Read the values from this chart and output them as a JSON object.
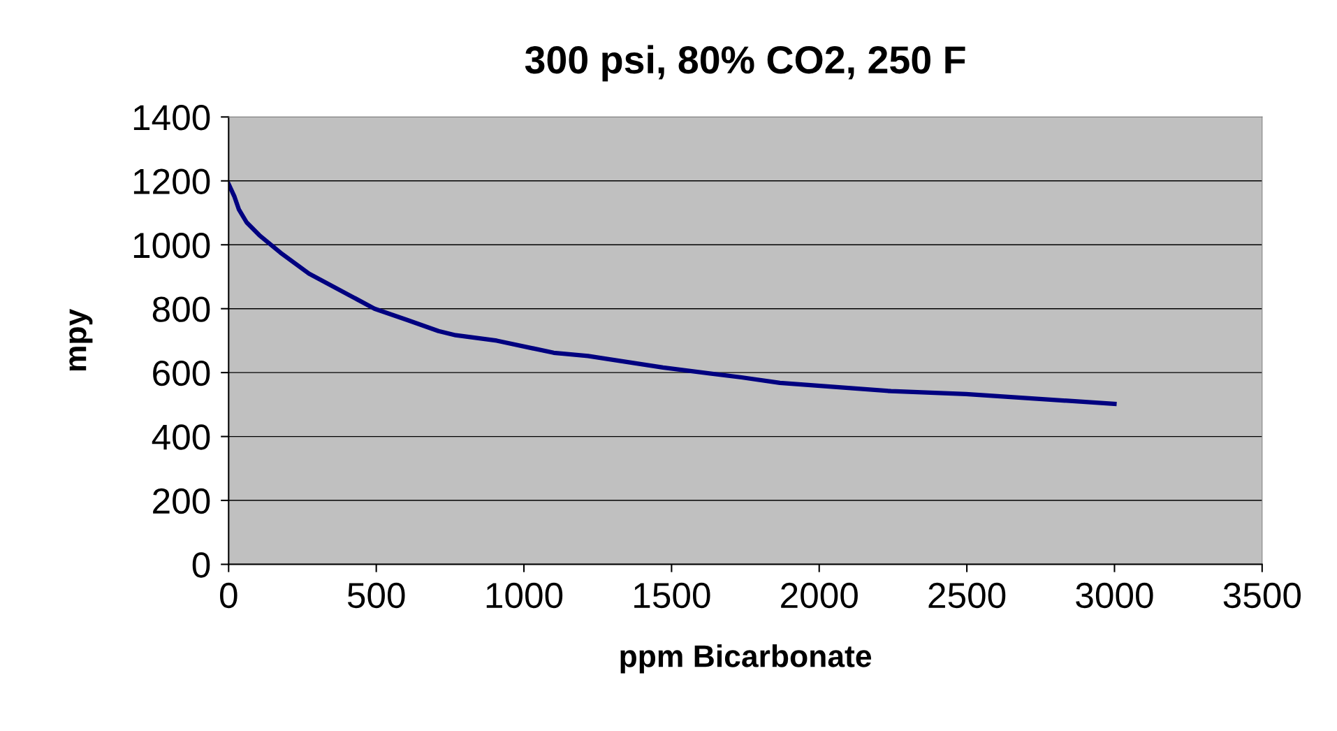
{
  "chart_data": {
    "type": "line",
    "title": "300 psi, 80% CO2, 250 F",
    "xlabel": "ppm Bicarbonate",
    "ylabel": "mpy",
    "x": [
      0,
      20,
      35,
      61,
      104,
      176,
      272,
      494,
      604,
      711,
      769,
      908,
      1101,
      1217,
      1471,
      1737,
      1867,
      2243,
      2497,
      3000
    ],
    "series": [
      {
        "color": "#000080",
        "values": [
          1190,
          1150,
          1110,
          1070,
          1030,
          975,
          910,
          800,
          765,
          730,
          717,
          700,
          662,
          652,
          616,
          585,
          568,
          542,
          533,
          502
        ]
      }
    ],
    "xlim": [
      0,
      3500
    ],
    "xticks": [
      0,
      500,
      1000,
      1500,
      2000,
      2500,
      3000,
      3500
    ],
    "ylim": [
      0,
      1400
    ],
    "yticks": [
      0,
      200,
      400,
      600,
      800,
      1000,
      1200,
      1400
    ],
    "grid": "y",
    "marker": "none",
    "line_style": "solid"
  }
}
